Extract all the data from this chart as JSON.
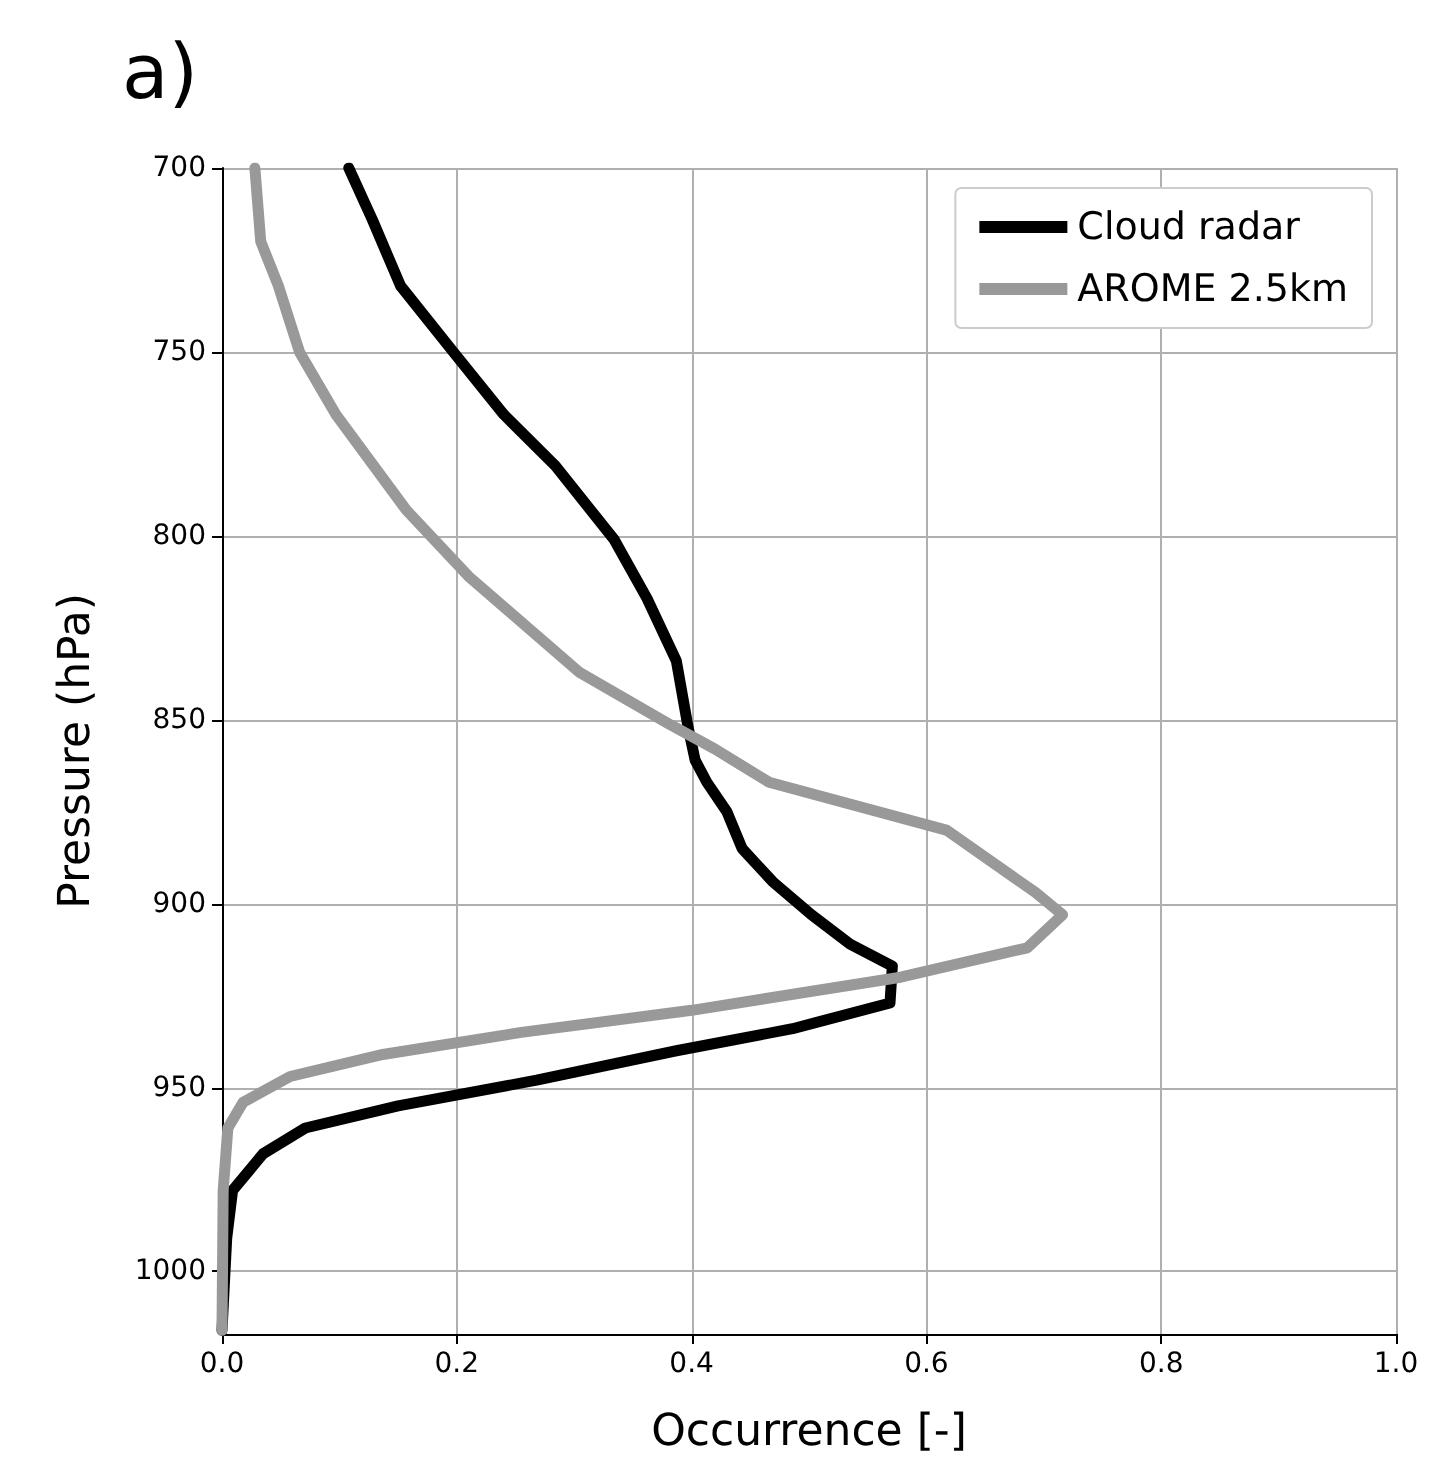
{
  "chart_data": {
    "type": "line",
    "title": "a)",
    "xlabel": "Occurrence [-]",
    "ylabel": "Pressure (hPa)",
    "xlim": [
      0,
      1
    ],
    "xticks": [
      {
        "value": 0,
        "label": "0.0"
      },
      {
        "value": 0.2,
        "label": "0.2"
      },
      {
        "value": 0.4,
        "label": "0.4"
      },
      {
        "value": 0.6,
        "label": "0.6"
      },
      {
        "value": 0.8,
        "label": "0.8"
      },
      {
        "value": 1,
        "label": "1.0"
      }
    ],
    "ylim": [
      1017,
      700
    ],
    "yticks": [
      700,
      750,
      800,
      850,
      900,
      950,
      1000
    ],
    "grid": true,
    "legend": "top right",
    "marker": "none",
    "line_style": "solid",
    "series": [
      {
        "name": "Cloud radar",
        "color": "#000000",
        "x": [
          0.108,
          0.128,
          0.152,
          0.197,
          0.24,
          0.284,
          0.334,
          0.362,
          0.387,
          0.397,
          0.403,
          0.413,
          0.43,
          0.443,
          0.469,
          0.502,
          0.535,
          0.571,
          0.569,
          0.486,
          0.387,
          0.268,
          0.15,
          0.071,
          0.035,
          0.009,
          0.004,
          0
        ],
        "values": [
          700,
          714,
          732,
          750,
          767,
          781,
          801,
          817,
          834,
          852,
          861,
          867,
          875,
          885,
          894,
          903,
          911,
          917,
          927,
          934,
          940,
          948,
          955,
          961,
          968,
          978,
          991,
          1016
        ]
      },
      {
        "name": "AROME 2.5km",
        "color": "#999999",
        "x": [
          0.028,
          0.033,
          0.048,
          0.066,
          0.097,
          0.157,
          0.21,
          0.304,
          0.38,
          0.42,
          0.466,
          0.617,
          0.693,
          0.716,
          0.686,
          0.578,
          0.4,
          0.255,
          0.137,
          0.058,
          0.018,
          0.005,
          0.001,
          0
        ],
        "values": [
          700,
          720,
          732,
          750,
          767,
          793,
          811,
          837,
          851,
          858,
          867,
          880,
          897,
          903,
          912,
          920,
          929,
          935,
          941,
          947,
          954,
          961,
          978,
          1016
        ]
      }
    ]
  }
}
